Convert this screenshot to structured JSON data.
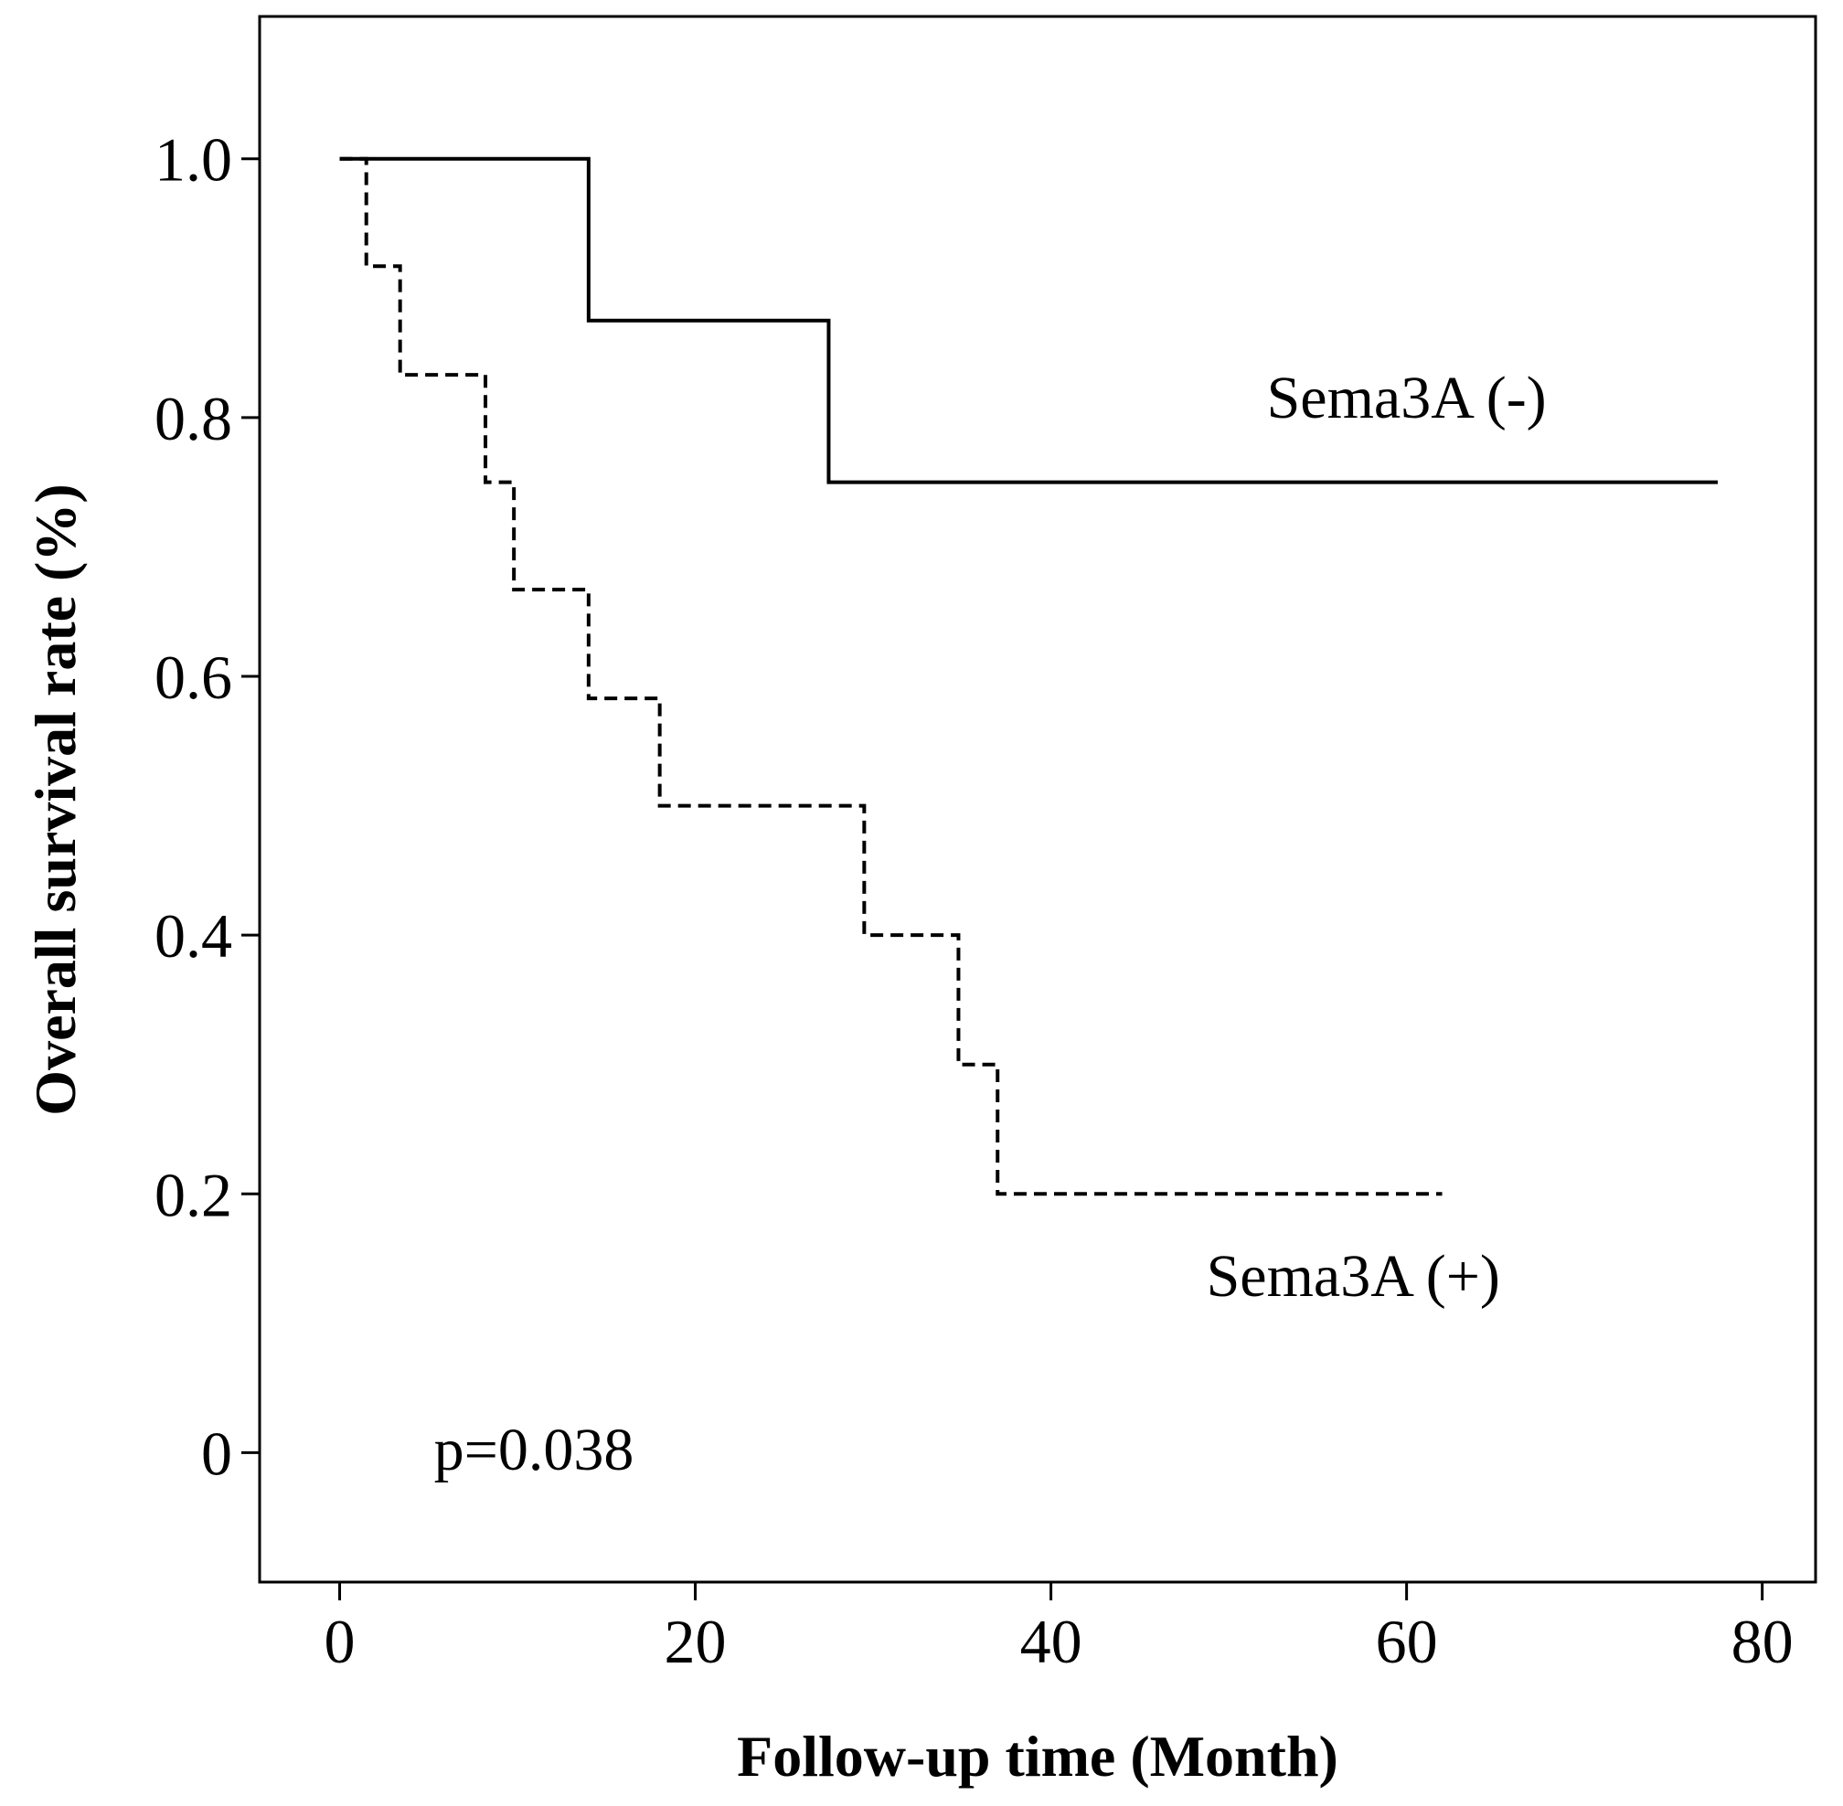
{
  "chart_data": {
    "type": "line",
    "subtype": "kaplan-meier-step",
    "title": "",
    "xlabel": "Follow-up time (Month)",
    "ylabel": "Overall survival rate (%)",
    "xlim": [
      -4.5,
      83
    ],
    "ylim": [
      -0.1,
      1.11
    ],
    "x_ticks": [
      0,
      20,
      40,
      60,
      80
    ],
    "x_tick_labels": [
      "0",
      "20",
      "40",
      "60",
      "80"
    ],
    "y_ticks": [
      0,
      0.2,
      0.4,
      0.6,
      0.8,
      1.0
    ],
    "y_tick_labels": [
      "0",
      "0.2",
      "0.4",
      "0.6",
      "0.8",
      "1.0"
    ],
    "grid": false,
    "series": [
      {
        "name": "Sema3A (-)",
        "style": "solid",
        "color": "#000000",
        "steps": [
          [
            0,
            1.0
          ],
          [
            14,
            0.875
          ],
          [
            27.5,
            0.75
          ]
        ],
        "end_x": 77.5
      },
      {
        "name": "Sema3A (+)",
        "style": "dashed",
        "color": "#000000",
        "steps": [
          [
            0,
            1.0
          ],
          [
            1.5,
            0.917
          ],
          [
            3.4,
            0.833
          ],
          [
            8.2,
            0.75
          ],
          [
            9.8,
            0.667
          ],
          [
            14,
            0.583
          ],
          [
            18,
            0.5
          ],
          [
            29.5,
            0.4
          ],
          [
            34.8,
            0.3
          ],
          [
            37,
            0.2
          ]
        ],
        "end_x": 62
      }
    ],
    "annotations": [
      {
        "text": "Sema3A (-)",
        "x": 60,
        "y": 0.8,
        "series": 0
      },
      {
        "text": "Sema3A (+)",
        "x": 57,
        "y": 0.121,
        "series": 1
      },
      {
        "text": "p=0.038",
        "x": 5.3,
        "y": -0.013
      }
    ]
  }
}
